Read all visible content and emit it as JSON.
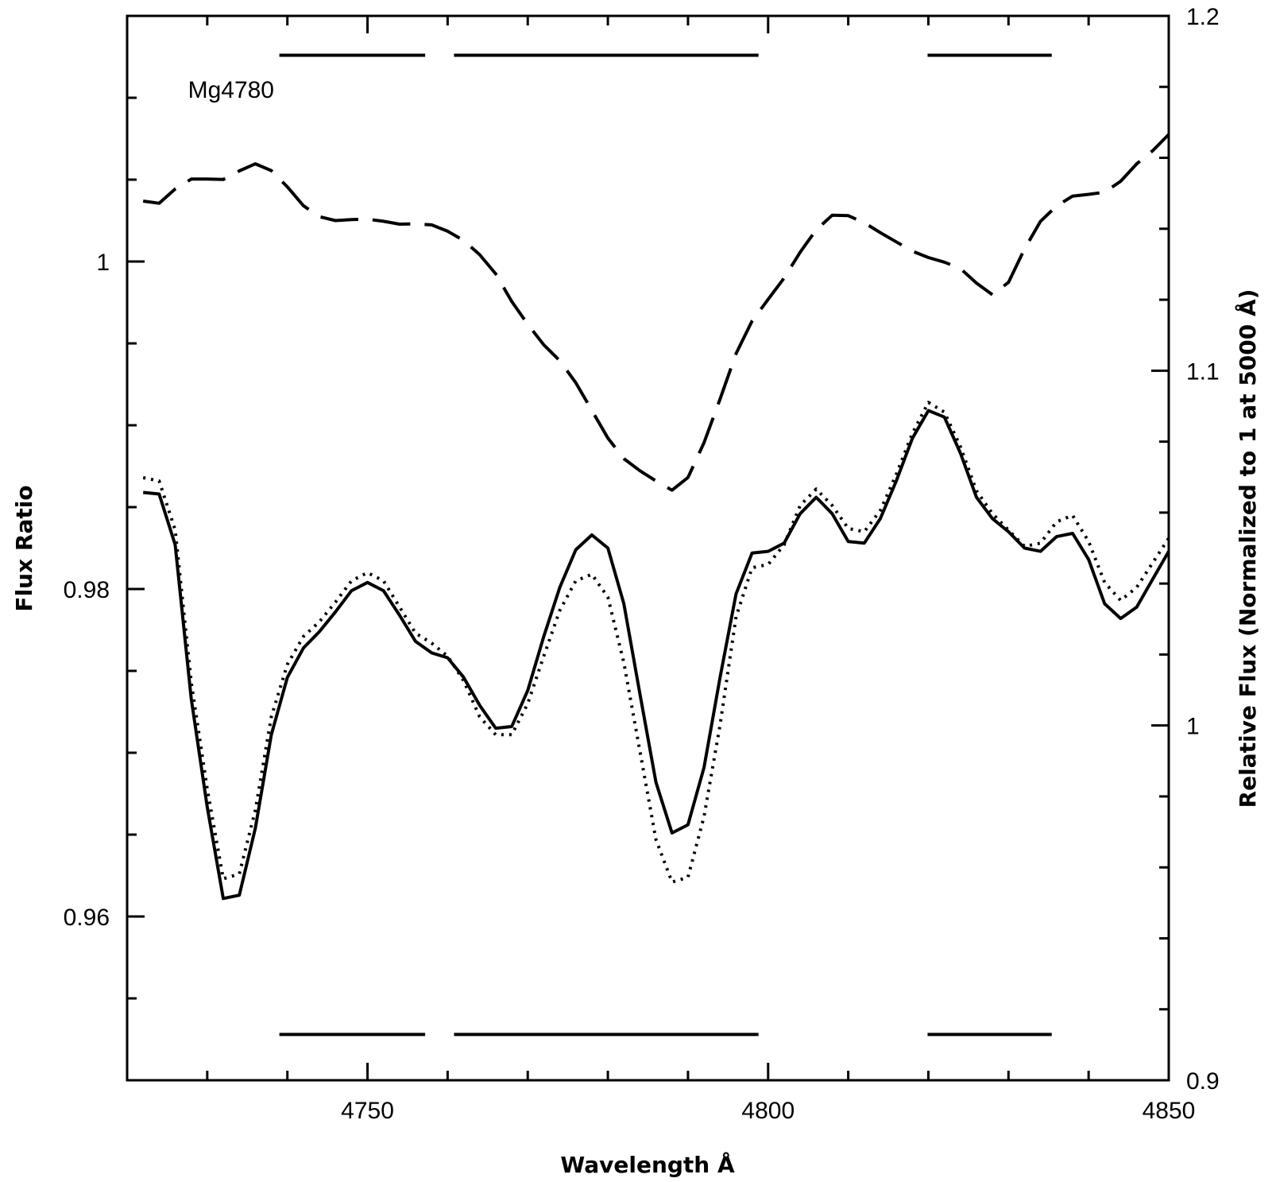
{
  "chart_data": {
    "type": "line",
    "xlabel": "Wavelength Å",
    "ylabel_left": "Flux Ratio",
    "ylabel_right": "Relative Flux (Normalized to 1 at 5000 Å)",
    "xlim": [
      4720,
      4850
    ],
    "ylim_left": [
      0.95,
      1.015
    ],
    "ylim_right": [
      0.9,
      1.2
    ],
    "x_ticks": [
      4750,
      4800,
      4850
    ],
    "y_ticks_left": [
      0.96,
      0.98,
      1
    ],
    "y_ticks_left_labels": [
      "0.96",
      "0.98",
      "1"
    ],
    "y_ticks_right": [
      0.9,
      1.0,
      1.1,
      1.2
    ],
    "y_ticks_right_labels": [
      "0.9",
      "1",
      "1.1",
      "1.2"
    ],
    "grid": false,
    "annotation_label": "Mg4780",
    "index_bands": [
      [
        4739,
        4757.2
      ],
      [
        4760.8,
        4798.8
      ],
      [
        4819.9,
        4835.4
      ]
    ],
    "series": [
      {
        "axis": "left",
        "style": "solid",
        "x": [
          4722,
          4724,
          4726,
          4728,
          4730,
          4732,
          4734,
          4736,
          4738,
          4740,
          4742,
          4744,
          4746,
          4748,
          4750,
          4752,
          4754,
          4756,
          4758,
          4760,
          4762,
          4764,
          4766,
          4768,
          4770,
          4772,
          4774,
          4776,
          4778,
          4780,
          4782,
          4784,
          4786,
          4788,
          4790,
          4792,
          4794,
          4796,
          4798,
          4800,
          4802,
          4804,
          4806,
          4808,
          4810,
          4812,
          4814,
          4816,
          4818,
          4820,
          4822,
          4824,
          4826,
          4828,
          4830,
          4832,
          4834,
          4836,
          4838,
          4840,
          4842,
          4844,
          4846,
          4848,
          4850
        ],
        "values": [
          0.9859,
          0.9858,
          0.9827,
          0.9733,
          0.9667,
          0.9611,
          0.9613,
          0.9654,
          0.9711,
          0.9746,
          0.9764,
          0.9774,
          0.9786,
          0.9799,
          0.9804,
          0.9799,
          0.9784,
          0.9768,
          0.9761,
          0.9758,
          0.9746,
          0.9729,
          0.9715,
          0.9716,
          0.9738,
          0.9771,
          0.9801,
          0.9824,
          0.9833,
          0.9825,
          0.9791,
          0.9736,
          0.9682,
          0.9651,
          0.9656,
          0.9691,
          0.9746,
          0.9797,
          0.9822,
          0.9823,
          0.9828,
          0.9846,
          0.9856,
          0.9846,
          0.9829,
          0.9828,
          0.9843,
          0.9866,
          0.9892,
          0.9909,
          0.9905,
          0.9883,
          0.9856,
          0.9843,
          0.9835,
          0.9825,
          0.9823,
          0.9832,
          0.9834,
          0.9818,
          0.9791,
          0.9782,
          0.9789,
          0.9806,
          0.9823
        ]
      },
      {
        "axis": "left",
        "style": "dotted",
        "x": [
          4722,
          4724,
          4726,
          4728,
          4730,
          4732,
          4734,
          4736,
          4738,
          4740,
          4742,
          4744,
          4746,
          4748,
          4750,
          4752,
          4754,
          4756,
          4758,
          4760,
          4762,
          4764,
          4766,
          4768,
          4770,
          4772,
          4774,
          4776,
          4778,
          4780,
          4782,
          4784,
          4786,
          4788,
          4790,
          4792,
          4794,
          4796,
          4798,
          4800,
          4802,
          4804,
          4806,
          4808,
          4810,
          4812,
          4814,
          4816,
          4818,
          4820,
          4822,
          4824,
          4826,
          4828,
          4830,
          4832,
          4834,
          4836,
          4838,
          4840,
          4842,
          4844,
          4846,
          4848,
          4850
        ],
        "values": [
          0.9868,
          0.9866,
          0.9836,
          0.9743,
          0.9678,
          0.9623,
          0.9626,
          0.9665,
          0.9722,
          0.9754,
          0.9771,
          0.978,
          0.9792,
          0.9805,
          0.981,
          0.9805,
          0.9789,
          0.9773,
          0.9767,
          0.9759,
          0.9744,
          0.9722,
          0.9711,
          0.9711,
          0.973,
          0.9759,
          0.9787,
          0.9805,
          0.9809,
          0.9795,
          0.9755,
          0.9701,
          0.9647,
          0.9621,
          0.9624,
          0.9661,
          0.9717,
          0.9783,
          0.9813,
          0.9815,
          0.9827,
          0.9851,
          0.9861,
          0.9851,
          0.9837,
          0.9835,
          0.9848,
          0.987,
          0.9895,
          0.9914,
          0.9908,
          0.9887,
          0.986,
          0.9846,
          0.9836,
          0.9826,
          0.9828,
          0.9841,
          0.9845,
          0.9829,
          0.9804,
          0.9793,
          0.9801,
          0.9816,
          0.9831
        ]
      },
      {
        "axis": "right",
        "style": "dashed",
        "x": [
          4722,
          4724,
          4726,
          4728,
          4730,
          4732,
          4734,
          4736,
          4738,
          4740,
          4742,
          4744,
          4746,
          4748,
          4750,
          4752,
          4754,
          4756,
          4758,
          4760,
          4762,
          4764,
          4766,
          4768,
          4770,
          4772,
          4774,
          4776,
          4778,
          4780,
          4782,
          4784,
          4786,
          4788,
          4790,
          4792,
          4794,
          4796,
          4798,
          4800,
          4802,
          4804,
          4806,
          4808,
          4810,
          4812,
          4814,
          4816,
          4818,
          4820,
          4822,
          4824,
          4826,
          4828,
          4830,
          4832,
          4834,
          4836,
          4838,
          4840,
          4842,
          4844,
          4846,
          4848,
          4850
        ],
        "values": [
          1.1478,
          1.1472,
          1.1512,
          1.154,
          1.154,
          1.1539,
          1.1563,
          1.1583,
          1.1564,
          1.1518,
          1.1465,
          1.1434,
          1.1423,
          1.1426,
          1.1427,
          1.1421,
          1.1413,
          1.1414,
          1.1411,
          1.1393,
          1.1367,
          1.1327,
          1.1273,
          1.1195,
          1.1131,
          1.1073,
          1.1028,
          1.0966,
          1.0888,
          1.081,
          1.0752,
          1.0718,
          1.0689,
          1.0663,
          1.0699,
          1.0797,
          1.092,
          1.1048,
          1.114,
          1.1201,
          1.1261,
          1.1334,
          1.1397,
          1.1438,
          1.1437,
          1.1417,
          1.1389,
          1.1363,
          1.1337,
          1.1319,
          1.1306,
          1.1288,
          1.1247,
          1.1214,
          1.1249,
          1.1343,
          1.1421,
          1.1464,
          1.1492,
          1.1497,
          1.1503,
          1.1534,
          1.1583,
          1.162,
          1.1666
        ]
      }
    ]
  }
}
